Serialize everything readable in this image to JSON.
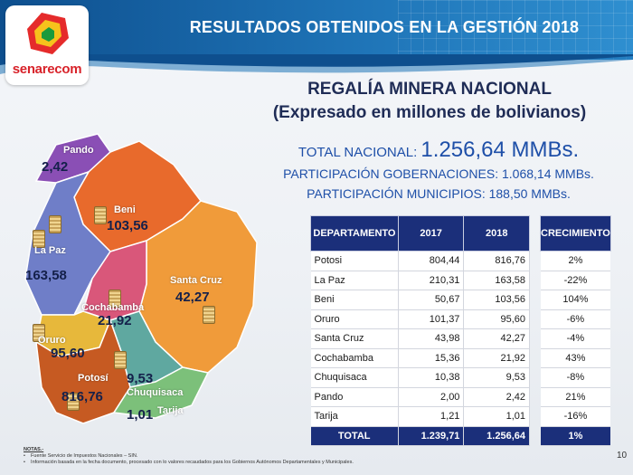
{
  "header": {
    "title": "RESULTADOS OBTENIDOS EN LA GESTIÓN 2018"
  },
  "logo": {
    "name": "senarecom"
  },
  "report": {
    "title": "REGALÍA MINERA NACIONAL",
    "subtitle": "(Expresado en millones de bolivianos)",
    "total_label": "TOTAL NACIONAL:",
    "total_value": "1.256,64 MMBs.",
    "gobernaciones": "PARTICIPACIÓN GOBERNACIONES: 1.068,14 MMBs.",
    "municipios": "PARTICIPACIÓN MUNICIPIOS: 188,50 MMBs."
  },
  "map": {
    "regions": [
      {
        "name": "Pando",
        "value": "2,42",
        "color": "#8a4fb5"
      },
      {
        "name": "Beni",
        "value": "103,56",
        "color": "#e86a2c"
      },
      {
        "name": "La Paz",
        "value": "163,58",
        "color": "#6f7ec8"
      },
      {
        "name": "Santa Cruz",
        "value": "42,27",
        "color": "#f09b3a"
      },
      {
        "name": "Cochabamba",
        "value": "21,92",
        "color": "#d9577a"
      },
      {
        "name": "Oruro",
        "value": "95,60",
        "color": "#e7b83b"
      },
      {
        "name": "Potosí",
        "value": "816,76",
        "color": "#c65a22"
      },
      {
        "name": "Chuquisaca",
        "value": "9,53",
        "color": "#5fa8a0"
      },
      {
        "name": "Tarija",
        "value": "1,01",
        "color": "#7cc07a"
      }
    ]
  },
  "table": {
    "headers": [
      "DEPARTAMENTO",
      "2017",
      "2018"
    ],
    "rows": [
      {
        "dept": "Potosi",
        "y2017": "804,44",
        "y2018": "816,76"
      },
      {
        "dept": "La Paz",
        "y2017": "210,31",
        "y2018": "163,58"
      },
      {
        "dept": "Beni",
        "y2017": "50,67",
        "y2018": "103,56"
      },
      {
        "dept": "Oruro",
        "y2017": "101,37",
        "y2018": "95,60"
      },
      {
        "dept": "Santa Cruz",
        "y2017": "43,98",
        "y2018": "42,27"
      },
      {
        "dept": "Cochabamba",
        "y2017": "15,36",
        "y2018": "21,92"
      },
      {
        "dept": "Chuquisaca",
        "y2017": "10,38",
        "y2018": "9,53"
      },
      {
        "dept": "Pando",
        "y2017": "2,00",
        "y2018": "2,42"
      },
      {
        "dept": "Tarija",
        "y2017": "1,21",
        "y2018": "1,01"
      }
    ],
    "total": {
      "label": "TOTAL",
      "y2017": "1.239,71",
      "y2018": "1.256,64"
    }
  },
  "growth": {
    "header": "CRECIMIENTO",
    "values": [
      "2%",
      "-22%",
      "104%",
      "-6%",
      "-4%",
      "43%",
      "-8%",
      "21%",
      "-16%"
    ],
    "total": "1%"
  },
  "notes": {
    "title": "NOTAS.-",
    "lines": [
      "Fuente Servicio de Impuestos Nacionales – SIN.",
      "Información basada en la fecha documento, procesado con lo valores recaudados para los Gobiernos Autónomos Departamentales y Municipales."
    ]
  },
  "page": {
    "number": "10"
  }
}
